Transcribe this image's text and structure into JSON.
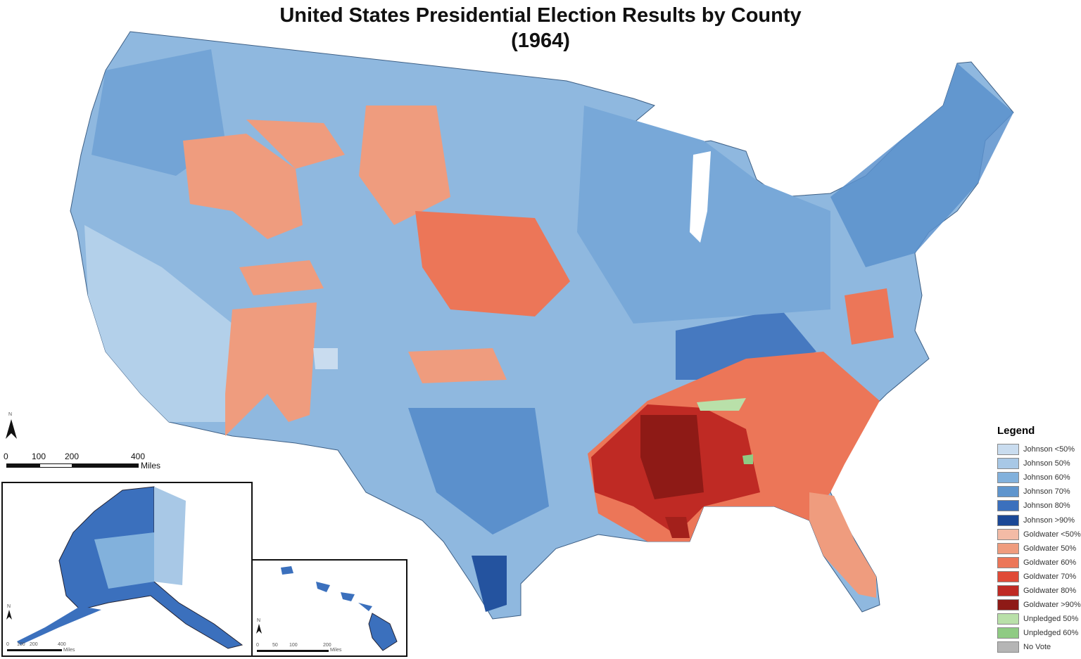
{
  "title": "United States Presidential Election Results by County",
  "subtitle": "(1964)",
  "legend": {
    "title": "Legend",
    "items": [
      {
        "label": "Johnson <50%",
        "color": "#c9dcef"
      },
      {
        "label": "Johnson 50%",
        "color": "#a8c8e6"
      },
      {
        "label": "Johnson 60%",
        "color": "#82b1dc"
      },
      {
        "label": "Johnson 70%",
        "color": "#5f95cd"
      },
      {
        "label": "Johnson 80%",
        "color": "#3b70bd"
      },
      {
        "label": "Johnson >90%",
        "color": "#1b4896"
      },
      {
        "label": "Goldwater <50%",
        "color": "#f3bba6"
      },
      {
        "label": "Goldwater 50%",
        "color": "#ef9c7e"
      },
      {
        "label": "Goldwater 60%",
        "color": "#ec7658"
      },
      {
        "label": "Goldwater 70%",
        "color": "#e04a37"
      },
      {
        "label": "Goldwater 80%",
        "color": "#bf2a24"
      },
      {
        "label": "Goldwater >90%",
        "color": "#8e1a16"
      },
      {
        "label": "Unpledged 50%",
        "color": "#b9e0a9"
      },
      {
        "label": "Unpledged 60%",
        "color": "#8fcb83"
      },
      {
        "label": "No Vote",
        "color": "#b5b5b5"
      }
    ]
  },
  "north_label": "N",
  "scale_main": {
    "ticks": [
      "0",
      "100",
      "200",
      "400"
    ],
    "unit": "Miles"
  },
  "scale_alaska": {
    "ticks": [
      "0",
      "100",
      "200",
      "400"
    ],
    "unit": "Miles"
  },
  "scale_hawaii": {
    "ticks": [
      "0",
      "50",
      "100",
      "200"
    ],
    "unit": "Miles"
  }
}
